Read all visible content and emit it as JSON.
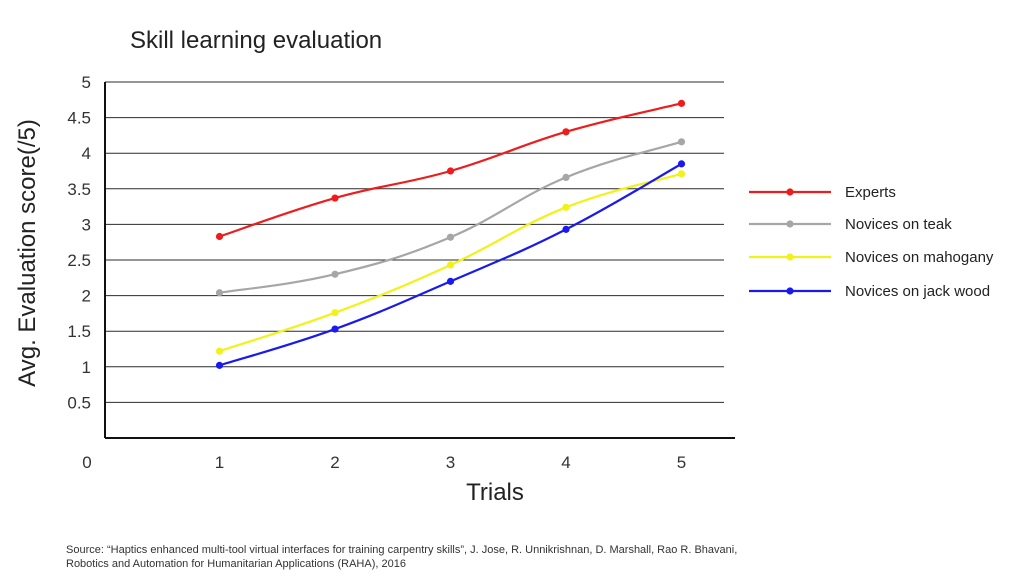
{
  "chart_data": {
    "type": "line",
    "title": "Skill learning evaluation",
    "xlabel": "Trials",
    "ylabel": "Avg. Evaluation score(/5)",
    "x": [
      1,
      2,
      3,
      4,
      5
    ],
    "x_tick_labels": [
      "0",
      "1",
      "2",
      "3",
      "4",
      "5"
    ],
    "y_tick_labels": [
      "0.5",
      "1",
      "1.5",
      "2",
      "2.5",
      "3",
      "3.5",
      "4",
      "4.5",
      "5"
    ],
    "xlim": [
      0,
      5.5
    ],
    "ylim": [
      0,
      5
    ],
    "grid": true,
    "legend_position": "right",
    "series": [
      {
        "name": "Experts",
        "color": "#ee1c1c",
        "values": [
          2.83,
          3.37,
          3.75,
          4.3,
          4.7
        ]
      },
      {
        "name": "Novices on teak",
        "color": "#a6a6a6",
        "values": [
          2.04,
          2.3,
          2.82,
          3.66,
          4.16
        ]
      },
      {
        "name": "Novices on mahogany",
        "color": "#f2f21a",
        "values": [
          1.22,
          1.76,
          2.43,
          3.24,
          3.71
        ]
      },
      {
        "name": "Novices on jack wood",
        "color": "#1a1aee",
        "values": [
          1.02,
          1.53,
          2.2,
          2.93,
          3.85
        ]
      }
    ]
  },
  "source": {
    "line1": "Source: “Haptics enhanced multi-tool virtual interfaces for training carpentry skills”, J. Jose, R. Unnikrishnan, D. Marshall, Rao R. Bhavani,",
    "line2": "Robotics and Automation for Humanitarian Applications (RAHA), 2016"
  }
}
